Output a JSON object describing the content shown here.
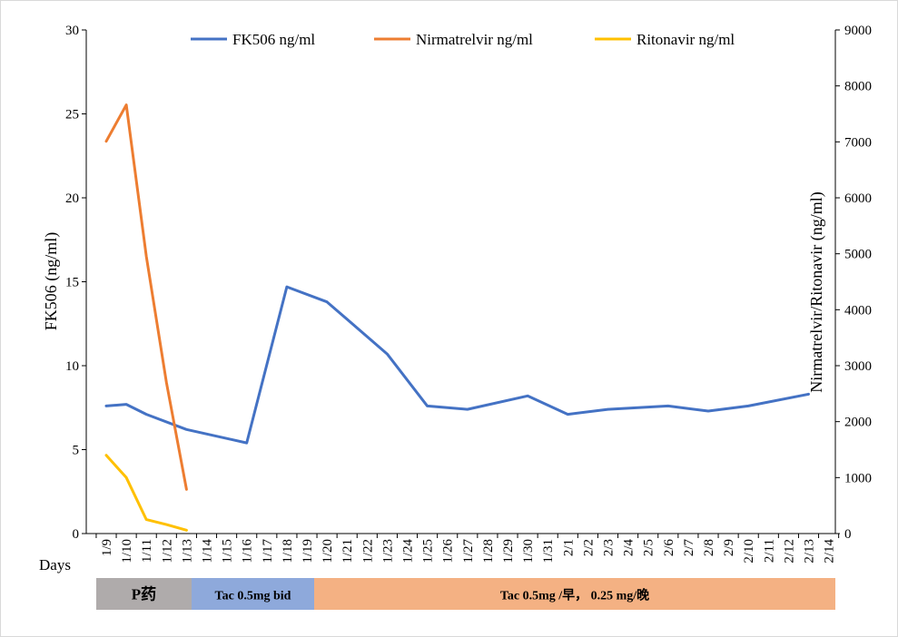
{
  "chart_data": {
    "type": "line",
    "xlabel": "Days",
    "ylabel_left": "FK506 (ng/ml)",
    "ylabel_right": "Nirmatrelvir/Ritonavir (ng/ml)",
    "ylim_left": [
      0,
      30
    ],
    "ylim_right": [
      0,
      9000
    ],
    "yticks_left": [
      0,
      5,
      10,
      15,
      20,
      25,
      30
    ],
    "yticks_right": [
      0,
      1000,
      2000,
      3000,
      4000,
      5000,
      6000,
      7000,
      8000,
      9000
    ],
    "categories": [
      "1/9",
      "1/10",
      "1/11",
      "1/12",
      "1/13",
      "1/14",
      "1/15",
      "1/16",
      "1/17",
      "1/18",
      "1/19",
      "1/20",
      "1/21",
      "1/22",
      "1/23",
      "1/24",
      "1/25",
      "1/26",
      "1/27",
      "1/28",
      "1/29",
      "1/30",
      "1/31",
      "2/1",
      "2/2",
      "2/3",
      "2/4",
      "2/5",
      "2/6",
      "2/7",
      "2/8",
      "2/9",
      "2/10",
      "2/11",
      "2/12",
      "2/13",
      "2/14"
    ],
    "legend_position": "top",
    "grid": false,
    "series": [
      {
        "name": "FK506 ng/ml",
        "axis": "left",
        "color": "#4472C4",
        "points": [
          [
            "1/9",
            7.6
          ],
          [
            "1/10",
            7.7
          ],
          [
            "1/11",
            7.1
          ],
          [
            "1/13",
            6.2
          ],
          [
            "1/16",
            5.4
          ],
          [
            "1/18",
            14.7
          ],
          [
            "1/20",
            13.8
          ],
          [
            "1/23",
            10.7
          ],
          [
            "1/25",
            7.6
          ],
          [
            "1/27",
            7.4
          ],
          [
            "1/30",
            8.2
          ],
          [
            "2/1",
            7.1
          ],
          [
            "2/3",
            7.4
          ],
          [
            "2/6",
            7.6
          ],
          [
            "2/8",
            7.3
          ],
          [
            "2/10",
            7.6
          ],
          [
            "2/13",
            8.3
          ]
        ]
      },
      {
        "name": "Nirmatrelvir ng/ml",
        "axis": "right",
        "color": "#ED7D31",
        "points": [
          [
            "1/9",
            7010
          ],
          [
            "1/10",
            7660
          ],
          [
            "1/11",
            4950
          ],
          [
            "1/12",
            2700
          ],
          [
            "1/13",
            790
          ]
        ]
      },
      {
        "name": "Ritonavir ng/ml",
        "axis": "right",
        "color": "#FFC000",
        "points": [
          [
            "1/9",
            1400
          ],
          [
            "1/10",
            1000
          ],
          [
            "1/11",
            250
          ],
          [
            "1/12",
            160
          ],
          [
            "1/13",
            60
          ]
        ]
      }
    ],
    "annotation_bands": [
      {
        "label": "P药",
        "start": "1/9",
        "end": "1/13",
        "color": "#AFABAB"
      },
      {
        "label": "Tac 0.5mg  bid",
        "start": "1/14",
        "end": "1/19",
        "color": "#8EA9DB"
      },
      {
        "label": "Tac 0.5mg /早， 0.25 mg/晚",
        "start": "1/20",
        "end": "2/14",
        "color": "#F4B183"
      }
    ]
  }
}
